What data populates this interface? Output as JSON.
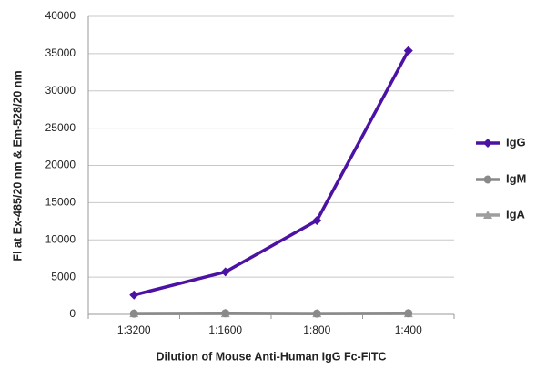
{
  "chart_data": {
    "type": "line",
    "x_label": "Dilution of Mouse Anti-Human IgG Fc-FITC",
    "y_label": "Fl at Ex-485/20 nm & Em-528/20 nm",
    "categories": [
      "1:3200",
      "1:1600",
      "1:800",
      "1:400"
    ],
    "series": [
      {
        "name": "IgG",
        "color": "#4b12a3",
        "marker": "diamond",
        "values": [
          2600,
          5700,
          12600,
          35400
        ]
      },
      {
        "name": "IgM",
        "color": "#8a8a8a",
        "marker": "circle",
        "values": [
          100,
          150,
          100,
          150
        ]
      },
      {
        "name": "IgA",
        "color": "#9e9e9e",
        "marker": "triangle",
        "values": [
          100,
          100,
          100,
          100
        ]
      }
    ],
    "ylim": [
      0,
      40000
    ],
    "yticks": [
      0,
      5000,
      10000,
      15000,
      20000,
      25000,
      30000,
      35000,
      40000
    ],
    "grid": true,
    "legend": "right"
  }
}
